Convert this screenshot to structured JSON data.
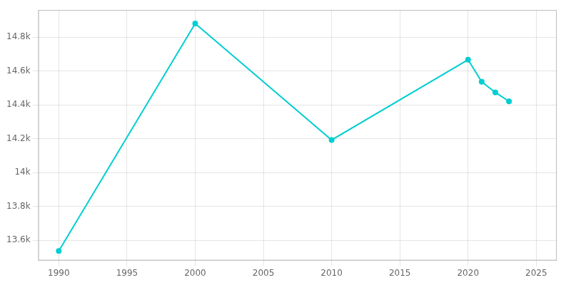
{
  "chart_data": {
    "type": "line",
    "x": [
      1990,
      2000,
      2010,
      2020,
      2021,
      2022,
      2023
    ],
    "values": [
      13536,
      14880,
      14192,
      14666,
      14536,
      14473,
      14420
    ],
    "color": "#00CED1",
    "marker": "circle",
    "xlim": [
      1988.5,
      2026.5
    ],
    "xticks": [
      1990,
      1995,
      2000,
      2005,
      2010,
      2015,
      2020,
      2025
    ],
    "ylim": [
      13480,
      14960
    ],
    "yticks": [
      {
        "value": 13600,
        "label": "13.6k"
      },
      {
        "value": 13800,
        "label": "13.8k"
      },
      {
        "value": 14000,
        "label": "14k"
      },
      {
        "value": 14200,
        "label": "14.2k"
      },
      {
        "value": 14400,
        "label": "14.4k"
      },
      {
        "value": 14600,
        "label": "14.6k"
      },
      {
        "value": 14800,
        "label": "14.8k"
      }
    ],
    "grid": true
  }
}
